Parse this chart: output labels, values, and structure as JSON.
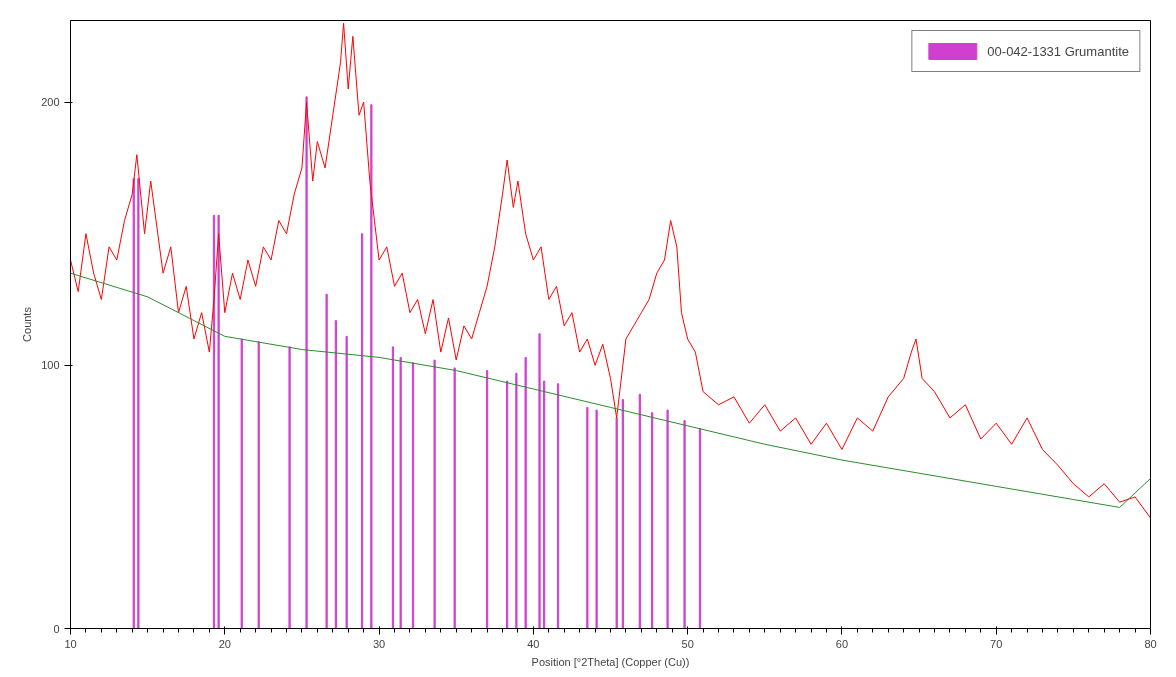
{
  "chart_data": {
    "type": "line",
    "xlabel": "Position [°2Theta] (Copper (Cu))",
    "ylabel": "Counts",
    "xlim": [
      10,
      80
    ],
    "xticks": [
      10,
      20,
      30,
      40,
      50,
      60,
      70,
      80
    ],
    "ylim": [
      0,
      231
    ],
    "yticks": [
      0,
      100,
      200
    ],
    "grid": false,
    "legend": "top right",
    "series": [
      {
        "color": "#ff0000",
        "x": [
          10,
          10.5,
          11,
          11.5,
          12,
          12.5,
          13,
          13.5,
          14,
          14.3,
          14.8,
          15.2,
          16,
          16.5,
          17,
          17.5,
          18,
          18.5,
          19,
          19.3,
          19.6,
          20,
          20.5,
          21,
          21.5,
          22,
          22.5,
          23,
          23.5,
          24,
          24.5,
          25,
          25.3,
          25.7,
          26,
          26.5,
          27,
          27.5,
          27.7,
          28,
          28.3,
          28.7,
          29,
          29.4,
          29.7,
          30,
          30.5,
          31,
          31.5,
          32,
          32.5,
          33,
          33.5,
          34,
          34.5,
          35,
          35.5,
          36,
          36.5,
          37,
          37.5,
          38,
          38.3,
          38.7,
          39,
          39.5,
          40,
          40.5,
          41,
          41.5,
          42,
          42.5,
          43,
          43.5,
          44,
          44.5,
          45,
          45.4,
          45.8,
          46,
          46.5,
          47,
          47.5,
          48,
          48.5,
          48.9,
          49.3,
          49.6,
          50,
          50.5,
          51,
          52,
          53,
          54,
          55,
          56,
          57,
          58,
          59,
          60,
          61,
          62,
          63,
          64,
          64.5,
          64.8,
          65.2,
          66,
          67,
          68,
          69,
          70,
          71,
          72,
          73,
          74,
          75,
          76,
          77,
          78,
          79,
          80
        ],
        "values": [
          140,
          128,
          150,
          135,
          125,
          145,
          140,
          155,
          165,
          180,
          150,
          170,
          135,
          145,
          120,
          130,
          110,
          120,
          105,
          125,
          150,
          120,
          135,
          125,
          140,
          130,
          145,
          140,
          155,
          150,
          165,
          175,
          200,
          170,
          185,
          175,
          195,
          215,
          230,
          205,
          225,
          195,
          200,
          170,
          155,
          140,
          145,
          130,
          135,
          120,
          125,
          112,
          125,
          105,
          118,
          102,
          115,
          110,
          120,
          130,
          145,
          165,
          178,
          160,
          170,
          150,
          140,
          145,
          125,
          130,
          115,
          120,
          105,
          110,
          100,
          108,
          95,
          80,
          100,
          110,
          115,
          120,
          125,
          135,
          140,
          155,
          145,
          120,
          110,
          105,
          90,
          85,
          88,
          78,
          85,
          75,
          80,
          70,
          78,
          68,
          80,
          75,
          88,
          95,
          105,
          110,
          95,
          90,
          80,
          85,
          72,
          78,
          70,
          80,
          68,
          62,
          55,
          50,
          55,
          48,
          50,
          42
        ]
      },
      {
        "type": "line",
        "color": "#2e8b2e",
        "x": [
          10,
          15,
          20,
          25,
          30,
          35,
          40,
          45,
          50,
          55,
          60,
          65,
          70,
          75,
          78,
          80
        ],
        "values": [
          135,
          126,
          111,
          106,
          103,
          98,
          91,
          84,
          77,
          70,
          64,
          59,
          54,
          49,
          46,
          57
        ]
      },
      {
        "type": "bar",
        "name": "00-042-1331 Grumantite",
        "color": "#d040d0",
        "x": [
          14.1,
          14.4,
          19.3,
          19.6,
          21.1,
          22.2,
          24.2,
          25.3,
          26.6,
          27.2,
          27.9,
          28.9,
          29.5,
          30.9,
          31.4,
          32.2,
          33.6,
          34.9,
          37.0,
          38.3,
          38.9,
          39.5,
          40.4,
          40.7,
          41.6,
          43.5,
          44.1,
          45.4,
          45.8,
          46.9,
          47.7,
          48.7,
          49.8,
          50.8
        ],
        "values": [
          171,
          171,
          157,
          157,
          110,
          109,
          107,
          202,
          127,
          117,
          111,
          150,
          199,
          107,
          103,
          101,
          102,
          99,
          98,
          94,
          97,
          103,
          112,
          94,
          93,
          84,
          83,
          80,
          87,
          89,
          82,
          83,
          79,
          76
        ]
      }
    ]
  }
}
